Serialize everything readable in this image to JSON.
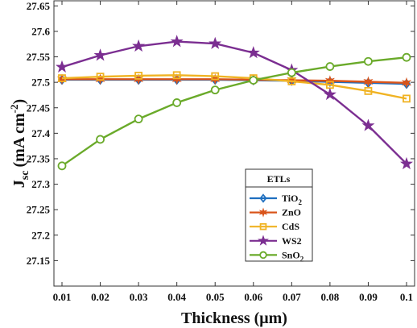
{
  "chart_data": {
    "type": "line",
    "xlabel": "Thickness (μm)",
    "ylabel": "J_sc (mA cm^-2)",
    "ylabel_main": "J",
    "ylabel_sub": "sc",
    "ylabel_units": "(mA cm",
    "ylabel_sup": "-2",
    "ylabel_close": ")",
    "xlim": [
      0.01,
      0.1
    ],
    "ylim": [
      27.1,
      27.66
    ],
    "x_ticks": [
      "0.01",
      "0.02",
      "0.03",
      "0.04",
      "0.05",
      "0.06",
      "0.07",
      "0.08",
      "0.09",
      "0.1"
    ],
    "y_ticks": [
      "27.15",
      "27.2",
      "27.25",
      "27.3",
      "27.35",
      "27.4",
      "27.45",
      "27.5",
      "27.55",
      "27.6",
      "27.65"
    ],
    "grid": false,
    "legend_title": "ETLs",
    "legend_position": "lower-center",
    "x": [
      0.01,
      0.02,
      0.03,
      0.04,
      0.05,
      0.06,
      0.07,
      0.08,
      0.09,
      0.1
    ],
    "series": [
      {
        "name": "TiO2",
        "label_main": "TiO",
        "label_sub": "2",
        "color": "#1f6fbf",
        "marker": "diamond",
        "values": [
          27.505,
          27.505,
          27.505,
          27.505,
          27.505,
          27.504,
          27.503,
          27.501,
          27.499,
          27.497
        ]
      },
      {
        "name": "ZnO",
        "label_main": "ZnO",
        "label_sub": "",
        "color": "#d9541a",
        "marker": "star6",
        "values": [
          27.506,
          27.506,
          27.506,
          27.506,
          27.506,
          27.505,
          27.504,
          27.503,
          27.501,
          27.499
        ]
      },
      {
        "name": "CdS",
        "label_main": "CdS",
        "label_sub": "",
        "color": "#f0b323",
        "marker": "square",
        "values": [
          27.508,
          27.511,
          27.513,
          27.514,
          27.512,
          27.508,
          27.502,
          27.495,
          27.483,
          27.468
        ]
      },
      {
        "name": "WS2",
        "label_main": "WS2",
        "label_sub": "",
        "color": "#7b2e91",
        "marker": "star5",
        "values": [
          27.53,
          27.553,
          27.571,
          27.58,
          27.576,
          27.558,
          27.524,
          27.476,
          27.415,
          27.34
        ]
      },
      {
        "name": "SnO2",
        "label_main": "SnO",
        "label_sub": "2",
        "color": "#6aaa2a",
        "marker": "circle",
        "values": [
          27.336,
          27.388,
          27.428,
          27.46,
          27.485,
          27.504,
          27.519,
          27.531,
          27.541,
          27.549
        ]
      }
    ]
  }
}
